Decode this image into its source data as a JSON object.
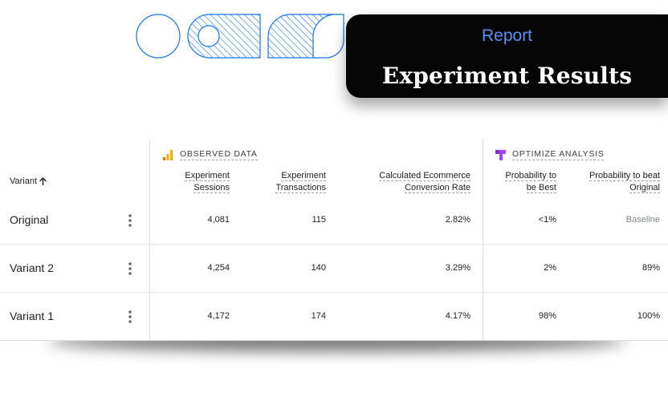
{
  "card": {
    "eyebrow": "Report",
    "title": "Experiment Results"
  },
  "groups": {
    "observed": {
      "label": "OBSERVED DATA",
      "icon": "analytics-bars-icon",
      "color": "#f9ab00"
    },
    "optimize": {
      "label": "OPTIMIZE ANALYSIS",
      "icon": "optimize-icon",
      "color": "#a142f4"
    }
  },
  "columns": {
    "variant": "Variant",
    "sessions": [
      "Experiment",
      "Sessions"
    ],
    "transactions": [
      "Experiment",
      "Transactions"
    ],
    "conversion": [
      "Calculated Ecommerce",
      "Conversion Rate"
    ],
    "prob_best": [
      "Probability to",
      "be Best"
    ],
    "prob_beat": [
      "Probability to beat",
      "Original"
    ]
  },
  "rows": [
    {
      "name": "Original",
      "sessions": "4,081",
      "transactions": "115",
      "conversion": "2.82%",
      "prob_best": "<1%",
      "prob_beat": "Baseline"
    },
    {
      "name": "Variant 2",
      "sessions": "4,254",
      "transactions": "140",
      "conversion": "3.29%",
      "prob_best": "2%",
      "prob_beat": "89%"
    },
    {
      "name": "Variant 1",
      "sessions": "4,172",
      "transactions": "174",
      "conversion": "4.17%",
      "prob_best": "98%",
      "prob_beat": "100%"
    }
  ],
  "colors": {
    "accent_blue": "#1a73e8",
    "card_bg": "#060606",
    "eyebrow": "#5b8ff0"
  }
}
